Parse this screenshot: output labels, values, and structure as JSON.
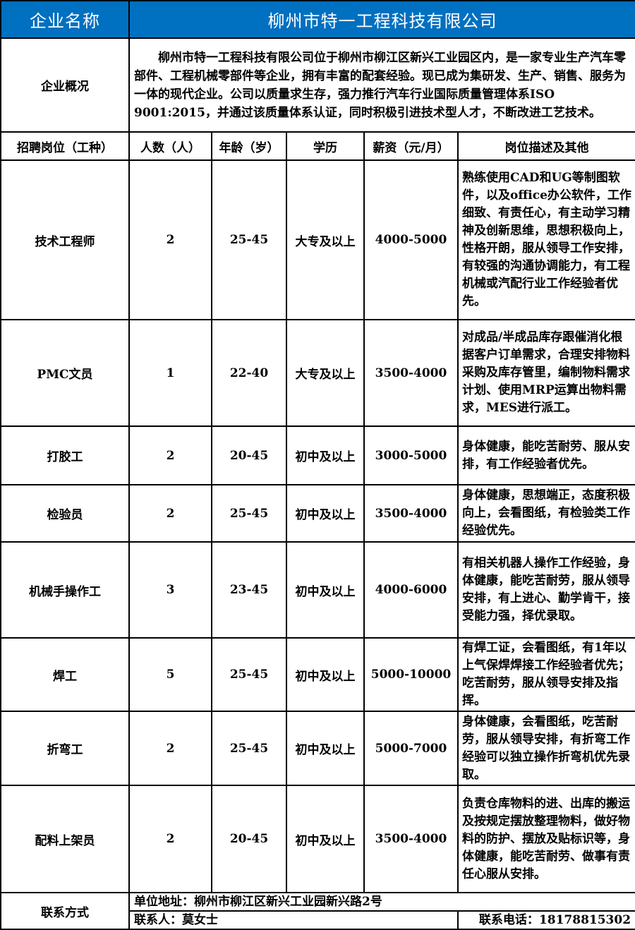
{
  "header": {
    "name_label": "企业名称",
    "company_name": "柳州市特一工程科技有限公司"
  },
  "overview": {
    "label": "企业概况",
    "text": "　　柳州市特一工程科技有限公司位于柳州市柳江区新兴工业园区内，是一家专业生产汽车零部件、工程机械零部件等企业，拥有丰富的配套经验。现已成为集研发、生产、销售、服务为一体的现代企业。公司以质量求生存，强力推行汽车行业国际质量管理体系ISO 9001:2015，并通过该质量体系认证，同时积极引进技术型人才，不断改进工艺技术。"
  },
  "columns": [
    "招聘岗位（工种）",
    "人数（人）",
    "年龄（岁）",
    "学历",
    "薪资（元/月）",
    "岗位描述及其他"
  ],
  "jobs": [
    {
      "title": "技术工程师",
      "count": "2",
      "age": "25-45",
      "edu": "大专及以上",
      "salary": "4000-5000",
      "desc": "熟练使用CAD和UG等制图软件，以及office办公软件，工作细致、有责任心，有主动学习精神及创新思维，思想积极向上，性格开朗，服从领导工作安排，有较强的沟通协调能力，有工程机械或汽配行业工作经验者优先。"
    },
    {
      "title": "PMC文员",
      "count": "1",
      "age": "22-40",
      "edu": "大专及以上",
      "salary": "3500-4000",
      "desc": "对成品/半成品库存跟催消化根据客户订单需求，合理安排物料采购及库存管里，编制物料需求计划、使用MRP运算出物料需求，MES进行派工。"
    },
    {
      "title": "打胶工",
      "count": "2",
      "age": "20-45",
      "edu": "初中及以上",
      "salary": "3000-5000",
      "desc": "身体健康，能吃苦耐劳、服从安排，有工作经验者优先。"
    },
    {
      "title": "检验员",
      "count": "2",
      "age": "25-45",
      "edu": "初中及以上",
      "salary": "3500-4000",
      "desc": "身体健康，思想端正，态度积极向上，会看图纸，有检验类工作经验优先。"
    },
    {
      "title": "机械手操作工",
      "count": "3",
      "age": "23-45",
      "edu": "初中及以上",
      "salary": "4000-6000",
      "desc": "有相关机器人操作工作经验，身体健康，能吃苦耐劳，服从领导安排，有上进心、勤学肯干，接受能力强，择优录取。"
    },
    {
      "title": "焊工",
      "count": "5",
      "age": "25-45",
      "edu": "初中及以上",
      "salary": "5000-10000",
      "desc": "有焊工证，会看图纸，有1年以上气保焊焊接工作经验者优先；吃苦耐劳，服从领导安排及指挥。"
    },
    {
      "title": "折弯工",
      "count": "2",
      "age": "25-45",
      "edu": "初中及以上",
      "salary": "5000-7000",
      "desc": "身体健康，会看图纸，吃苦耐劳，服从领导安排，有折弯工作经验可以独立操作折弯机优先录取。"
    },
    {
      "title": "配料上架员",
      "count": "2",
      "age": "20-45",
      "edu": "初中及以上",
      "salary": "3500-4000",
      "desc": "负责仓库物料的进、出库的搬运及按规定摆放整理物料，做好物料的防护、摆放及贴标识等，身体健康，能吃苦耐劳、做事有责任心服从安排。"
    }
  ],
  "contact": {
    "label": "联系方式",
    "address": "单位地址：柳州市柳江区新兴工业园新兴路2号",
    "person": "联系人：莫女士",
    "phone": "联系电话：18178815302"
  },
  "colors": {
    "header_bg": "#0070C0",
    "header_text": "#FFFFFF"
  }
}
